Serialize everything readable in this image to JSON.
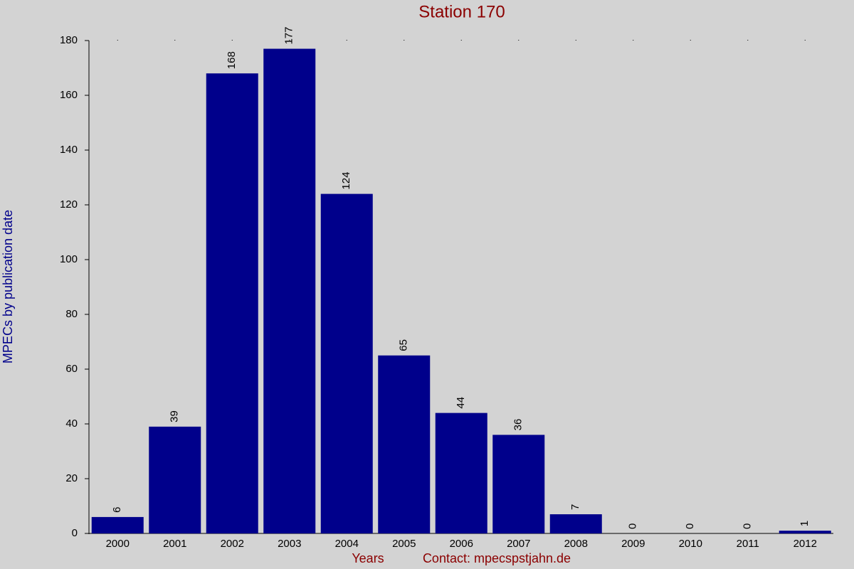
{
  "chart_data": {
    "type": "bar",
    "title": "Station 170",
    "x_label": "Years",
    "y_label": "MPECs by publication date",
    "footer": "Contact: mpecspstjahn.de",
    "categories": [
      "2000",
      "2001",
      "2002",
      "2003",
      "2004",
      "2005",
      "2006",
      "2007",
      "2008",
      "2009",
      "2010",
      "2011",
      "2012"
    ],
    "values": [
      6,
      39,
      168,
      177,
      124,
      65,
      44,
      36,
      7,
      0,
      0,
      0,
      1
    ],
    "color": "#00008b",
    "ylim": [
      0,
      180
    ],
    "yticks": [
      0,
      20,
      40,
      60,
      80,
      100,
      120,
      140,
      160,
      180
    ],
    "grid": false
  }
}
